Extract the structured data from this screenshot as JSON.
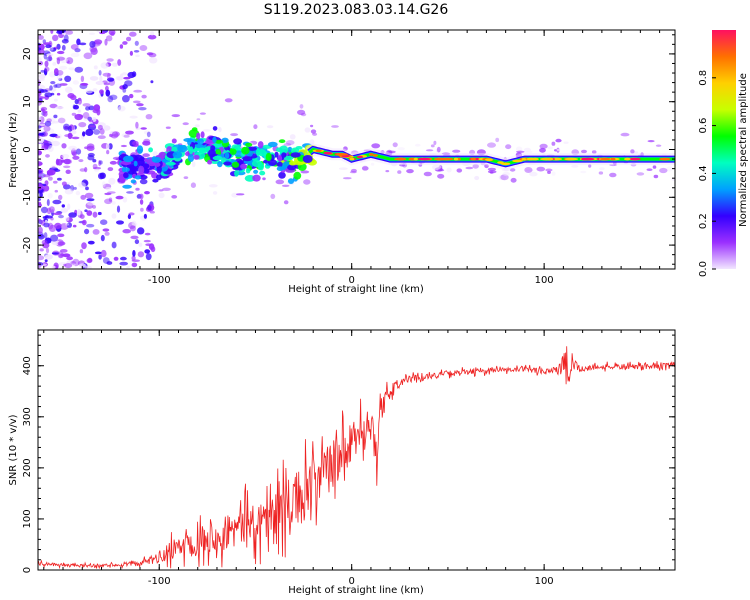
{
  "figure_title": "S119.2023.083.03.14.G26",
  "chart_data": [
    {
      "type": "heatmap",
      "title": "S119.2023.083.03.14.G26",
      "xlabel": "Height of straight line (km)",
      "ylabel": "Frequency (Hz)",
      "xlim": [
        -163,
        168
      ],
      "ylim": [
        -25,
        25
      ],
      "xticks": [
        -100,
        0,
        100
      ],
      "xtick_labels": [
        "-100",
        "0",
        "100"
      ],
      "yticks": [
        -20,
        -10,
        0,
        10,
        20
      ],
      "ytick_labels": [
        "-20",
        "-10",
        "0",
        "10",
        "20"
      ],
      "colorbar": {
        "label": "Normalized spectral amplitude",
        "range": [
          0.0,
          1.0
        ],
        "ticks": [
          0.0,
          0.2,
          0.4,
          0.6,
          0.8
        ],
        "tick_labels": [
          "0.0",
          "0.2",
          "0.4",
          "0.6",
          "0.8"
        ],
        "colormap": [
          "#f2e6ff",
          "#9b30ff",
          "#3300ff",
          "#00a0ff",
          "#00ffc0",
          "#00ff00",
          "#c8ff00",
          "#ffd000",
          "#ff7000",
          "#ff1060"
        ]
      },
      "dominant_frequency_track": {
        "x": [
          -163,
          -140,
          -120,
          -100,
          -80,
          -60,
          -40,
          -30,
          -20,
          -10,
          -5,
          0,
          10,
          20,
          40,
          60,
          70,
          80,
          90,
          100,
          110,
          120,
          140,
          160,
          168
        ],
        "y": [
          0,
          -1,
          -4,
          -3,
          1,
          -2,
          -2,
          -3,
          0,
          -1,
          -1,
          -2,
          -1,
          -2,
          -2,
          -2,
          -2,
          -3,
          -2,
          -2,
          -2,
          -2,
          -2,
          -2,
          -2
        ],
        "amplitude": [
          0.2,
          0.25,
          0.3,
          0.35,
          0.5,
          0.45,
          0.5,
          0.55,
          0.9,
          0.95,
          0.7,
          0.8,
          0.85,
          0.95,
          0.95,
          0.9,
          0.85,
          0.9,
          0.85,
          0.9,
          0.95,
          0.9,
          0.95,
          0.95,
          0.9
        ]
      }
    },
    {
      "type": "line",
      "xlabel": "Height of straight line (km)",
      "ylabel": "SNR (10 * v/v)",
      "xlim": [
        -163,
        168
      ],
      "ylim": [
        0,
        470
      ],
      "xticks": [
        -100,
        0,
        100
      ],
      "xtick_labels": [
        "-100",
        "0",
        "100"
      ],
      "yticks": [
        0,
        100,
        200,
        300,
        400
      ],
      "ytick_labels": [
        "0",
        "100",
        "200",
        "300",
        "400"
      ],
      "series": [
        {
          "name": "SNR",
          "color": "#ee2222",
          "x": [
            -163,
            -150,
            -140,
            -130,
            -120,
            -110,
            -100,
            -95,
            -90,
            -85,
            -80,
            -75,
            -70,
            -65,
            -60,
            -55,
            -50,
            -45,
            -40,
            -35,
            -30,
            -25,
            -20,
            -15,
            -10,
            -5,
            0,
            5,
            10,
            13,
            15,
            20,
            25,
            30,
            40,
            50,
            60,
            70,
            80,
            90,
            100,
            105,
            110,
            112,
            115,
            120,
            130,
            140,
            150,
            160,
            168
          ],
          "y": [
            12,
            10,
            8,
            9,
            10,
            12,
            25,
            35,
            45,
            55,
            60,
            65,
            70,
            75,
            80,
            90,
            95,
            100,
            110,
            120,
            135,
            150,
            165,
            185,
            205,
            225,
            240,
            270,
            300,
            220,
            310,
            350,
            365,
            375,
            380,
            385,
            388,
            390,
            392,
            392,
            390,
            392,
            395,
            380,
            400,
            395,
            398,
            398,
            398,
            400,
            400
          ],
          "spread": [
            6,
            6,
            6,
            6,
            6,
            8,
            25,
            35,
            45,
            50,
            55,
            60,
            65,
            70,
            75,
            80,
            85,
            90,
            95,
            100,
            110,
            110,
            110,
            100,
            95,
            90,
            70,
            70,
            75,
            120,
            50,
            25,
            15,
            12,
            10,
            10,
            10,
            10,
            10,
            10,
            12,
            15,
            40,
            60,
            30,
            12,
            10,
            10,
            10,
            10,
            10
          ]
        }
      ]
    }
  ]
}
